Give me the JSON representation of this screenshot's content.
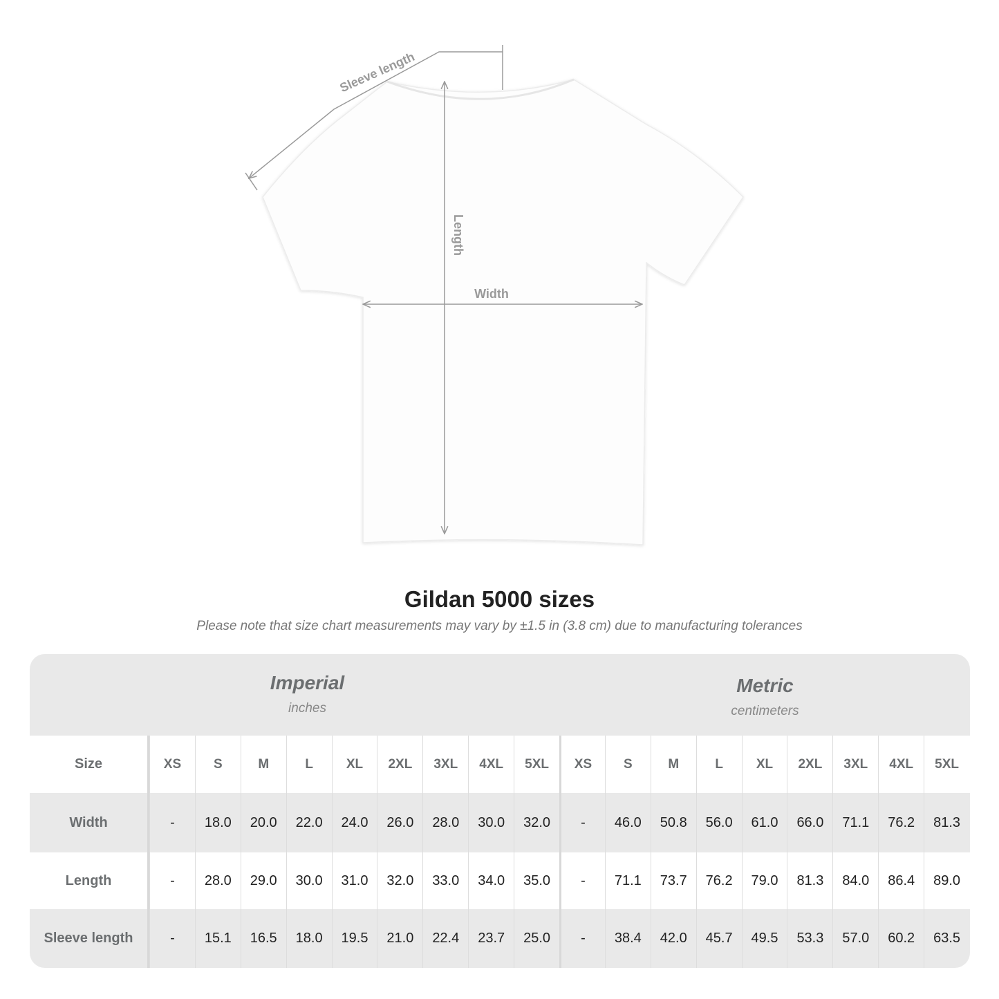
{
  "diagram": {
    "labels": {
      "sleeve": "Sleeve length",
      "length": "Length",
      "width": "Width"
    },
    "line_color": "#9a9a9a"
  },
  "header": {
    "title": "Gildan 5000 sizes",
    "note": "Please note that size chart measurements may vary by ±1.5 in (3.8 cm) due to manufacturing tolerances"
  },
  "table": {
    "imperial": {
      "name": "Imperial",
      "unit": "inches"
    },
    "metric": {
      "name": "Metric",
      "unit": "centimeters"
    },
    "size_label": "Size",
    "sizes": [
      "XS",
      "S",
      "M",
      "L",
      "XL",
      "2XL",
      "3XL",
      "4XL",
      "5XL"
    ],
    "rows": [
      {
        "label": "Width",
        "imperial": [
          "-",
          "18.0",
          "20.0",
          "22.0",
          "24.0",
          "26.0",
          "28.0",
          "30.0",
          "32.0"
        ],
        "metric": [
          "-",
          "46.0",
          "50.8",
          "56.0",
          "61.0",
          "66.0",
          "71.1",
          "76.2",
          "81.3"
        ]
      },
      {
        "label": "Length",
        "imperial": [
          "-",
          "28.0",
          "29.0",
          "30.0",
          "31.0",
          "32.0",
          "33.0",
          "34.0",
          "35.0"
        ],
        "metric": [
          "-",
          "71.1",
          "73.7",
          "76.2",
          "79.0",
          "81.3",
          "84.0",
          "86.4",
          "89.0"
        ]
      },
      {
        "label": "Sleeve length",
        "imperial": [
          "-",
          "15.1",
          "16.5",
          "18.0",
          "19.5",
          "21.0",
          "22.4",
          "23.7",
          "25.0"
        ],
        "metric": [
          "-",
          "38.4",
          "42.0",
          "45.7",
          "49.5",
          "53.3",
          "57.0",
          "60.2",
          "63.5"
        ]
      }
    ]
  }
}
